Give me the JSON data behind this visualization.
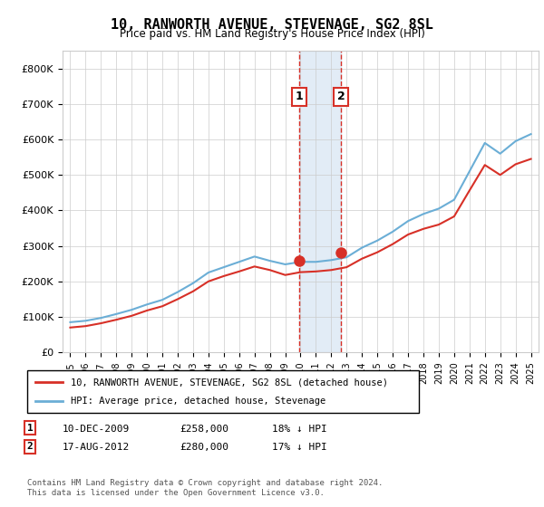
{
  "title": "10, RANWORTH AVENUE, STEVENAGE, SG2 8SL",
  "subtitle": "Price paid vs. HM Land Registry's House Price Index (HPI)",
  "legend_line1": "10, RANWORTH AVENUE, STEVENAGE, SG2 8SL (detached house)",
  "legend_line2": "HPI: Average price, detached house, Stevenage",
  "footnote": "Contains HM Land Registry data © Crown copyright and database right 2024.\nThis data is licensed under the Open Government Licence v3.0.",
  "transaction1_label": "1",
  "transaction1_date": "10-DEC-2009",
  "transaction1_price": "£258,000",
  "transaction1_hpi": "18% ↓ HPI",
  "transaction2_label": "2",
  "transaction2_date": "17-AUG-2012",
  "transaction2_price": "£280,000",
  "transaction2_hpi": "17% ↓ HPI",
  "hpi_color": "#6baed6",
  "price_color": "#d73027",
  "marker1_color": "#d73027",
  "marker2_color": "#d73027",
  "shading_color": "#c6dbef",
  "ylim": [
    0,
    850000
  ],
  "yticks": [
    0,
    100000,
    200000,
    300000,
    400000,
    500000,
    600000,
    700000,
    800000
  ],
  "ytick_labels": [
    "£0",
    "£100K",
    "£200K",
    "£300K",
    "£400K",
    "£500K",
    "£600K",
    "£700K",
    "£800K"
  ],
  "hpi_years": [
    1995,
    1996,
    1997,
    1998,
    1999,
    2000,
    2001,
    2002,
    2003,
    2004,
    2005,
    2006,
    2007,
    2008,
    2009,
    2010,
    2011,
    2012,
    2013,
    2014,
    2015,
    2016,
    2017,
    2018,
    2019,
    2020,
    2021,
    2022,
    2023,
    2024,
    2025
  ],
  "hpi_values": [
    85000,
    89000,
    97000,
    108000,
    120000,
    135000,
    148000,
    170000,
    195000,
    225000,
    240000,
    255000,
    270000,
    258000,
    248000,
    255000,
    255000,
    260000,
    268000,
    295000,
    315000,
    340000,
    370000,
    390000,
    405000,
    430000,
    510000,
    590000,
    560000,
    595000,
    615000
  ],
  "price_years": [
    1995,
    1996,
    1997,
    1998,
    1999,
    2000,
    2001,
    2002,
    2003,
    2004,
    2005,
    2006,
    2007,
    2008,
    2009,
    2010,
    2011,
    2012,
    2013,
    2014,
    2015,
    2016,
    2017,
    2018,
    2019,
    2020,
    2021,
    2022,
    2023,
    2024,
    2025
  ],
  "price_values": [
    70000,
    74000,
    82000,
    92000,
    103000,
    118000,
    130000,
    150000,
    172000,
    200000,
    215000,
    228000,
    242000,
    232000,
    218000,
    226000,
    228000,
    232000,
    240000,
    264000,
    282000,
    305000,
    332000,
    348000,
    360000,
    383000,
    456000,
    528000,
    500000,
    530000,
    545000
  ],
  "transaction1_x": 2009.92,
  "transaction1_y": 258000,
  "transaction2_x": 2012.63,
  "transaction2_y": 280000,
  "xlim_left": 1994.5,
  "xlim_right": 2025.5
}
